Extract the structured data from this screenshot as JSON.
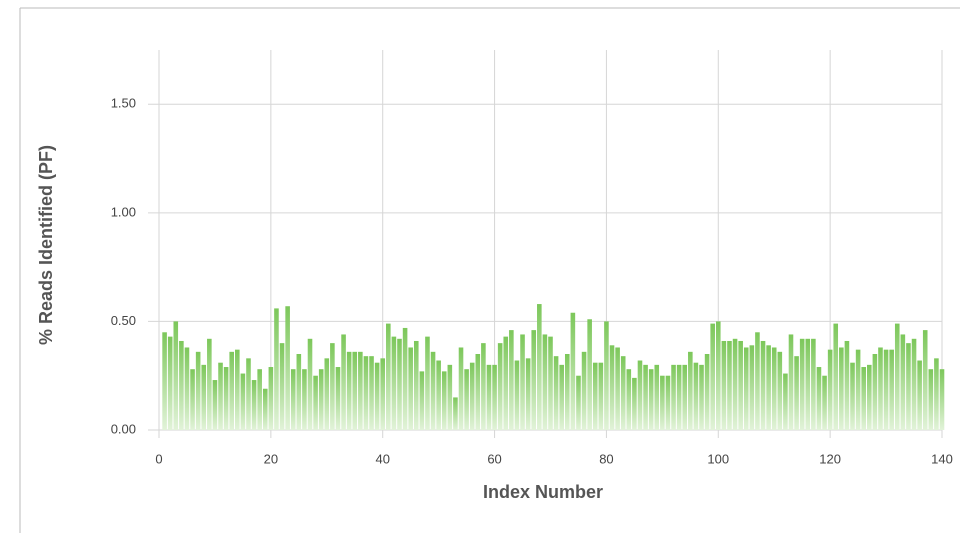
{
  "chart_data": {
    "type": "bar",
    "ylabel": "% Reads Identified (PF)",
    "xlabel": "Index Number",
    "color": "#7cc75a",
    "grid": true,
    "x": [
      1,
      2,
      3,
      4,
      5,
      6,
      7,
      8,
      9,
      10,
      11,
      12,
      13,
      14,
      15,
      16,
      17,
      18,
      19,
      20,
      21,
      22,
      23,
      24,
      25,
      26,
      27,
      28,
      29,
      30,
      31,
      32,
      33,
      34,
      35,
      36,
      37,
      38,
      39,
      40,
      41,
      42,
      43,
      44,
      45,
      46,
      47,
      48,
      49,
      50,
      51,
      52,
      53,
      54,
      55,
      56,
      57,
      58,
      59,
      60,
      61,
      62,
      63,
      64,
      65,
      66,
      67,
      68,
      69,
      70,
      71,
      72,
      73,
      74,
      75,
      76,
      77,
      78,
      79,
      80,
      81,
      82,
      83,
      84,
      85,
      86,
      87,
      88,
      89,
      90,
      91,
      92,
      93,
      94,
      95,
      96,
      97,
      98,
      99,
      100,
      101,
      102,
      103,
      104,
      105,
      106,
      107,
      108,
      109,
      110,
      111,
      112,
      113,
      114,
      115,
      116,
      117,
      118,
      119,
      120,
      121,
      122,
      123,
      124,
      125,
      126,
      127,
      128,
      129,
      130,
      131,
      132,
      133,
      134,
      135,
      136,
      137,
      138,
      139,
      140
    ],
    "values": [
      0.45,
      0.43,
      0.5,
      0.41,
      0.38,
      0.28,
      0.36,
      0.3,
      0.42,
      0.23,
      0.31,
      0.29,
      0.36,
      0.37,
      0.26,
      0.33,
      0.23,
      0.28,
      0.19,
      0.29,
      0.56,
      0.4,
      0.57,
      0.28,
      0.35,
      0.28,
      0.42,
      0.25,
      0.28,
      0.33,
      0.4,
      0.29,
      0.44,
      0.36,
      0.36,
      0.36,
      0.34,
      0.34,
      0.31,
      0.33,
      0.49,
      0.43,
      0.42,
      0.47,
      0.38,
      0.41,
      0.27,
      0.43,
      0.36,
      0.32,
      0.27,
      0.3,
      0.15,
      0.38,
      0.28,
      0.31,
      0.35,
      0.4,
      0.3,
      0.3,
      0.4,
      0.43,
      0.46,
      0.32,
      0.44,
      0.33,
      0.46,
      0.58,
      0.44,
      0.43,
      0.34,
      0.3,
      0.35,
      0.54,
      0.25,
      0.36,
      0.51,
      0.31,
      0.31,
      0.5,
      0.39,
      0.38,
      0.34,
      0.28,
      0.24,
      0.32,
      0.3,
      0.28,
      0.3,
      0.25,
      0.25,
      0.3,
      0.3,
      0.3,
      0.36,
      0.31,
      0.3,
      0.35,
      0.49,
      0.5,
      0.41,
      0.41,
      0.42,
      0.41,
      0.38,
      0.39,
      0.45,
      0.41,
      0.39,
      0.38,
      0.36,
      0.26,
      0.44,
      0.34,
      0.42,
      0.42,
      0.42,
      0.29,
      0.25,
      0.37,
      0.49,
      0.38,
      0.41,
      0.31,
      0.37,
      0.29,
      0.3,
      0.35,
      0.38,
      0.37,
      0.37,
      0.49,
      0.44,
      0.4,
      0.42,
      0.32,
      0.46,
      0.28,
      0.33,
      0.28
    ],
    "xlim": [
      0,
      140
    ],
    "xticks": [
      0,
      20,
      40,
      60,
      80,
      100,
      120,
      140
    ],
    "ylim": [
      0,
      1.75
    ],
    "yticks": [
      {
        "value": 0,
        "label": "0.00"
      },
      {
        "value": 0.5,
        "label": "0.50"
      },
      {
        "value": 1,
        "label": "1.00"
      },
      {
        "value": 1.5,
        "label": "1.50"
      }
    ]
  }
}
